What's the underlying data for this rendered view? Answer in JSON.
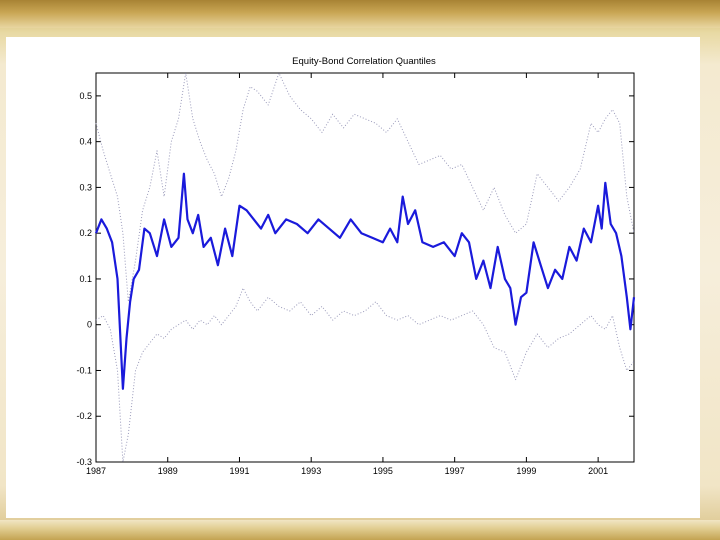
{
  "chart_data": {
    "type": "line",
    "title": "Equity-Bond Correlation Quantiles",
    "xlabel": "",
    "ylabel": "",
    "xlim": [
      1987.0,
      2002.0
    ],
    "ylim": [
      -0.3,
      0.55
    ],
    "xticks": [
      {
        "value": 1987,
        "label": "1987"
      },
      {
        "value": 1989,
        "label": "1989"
      },
      {
        "value": 1991,
        "label": "1991"
      },
      {
        "value": 1993,
        "label": "1993"
      },
      {
        "value": 1995,
        "label": "1995"
      },
      {
        "value": 1997,
        "label": "1997"
      },
      {
        "value": 1999,
        "label": "1999"
      },
      {
        "value": 2001,
        "label": "2001"
      }
    ],
    "yticks": [
      {
        "value": -0.3,
        "label": "-0.3"
      },
      {
        "value": -0.2,
        "label": "-0.2"
      },
      {
        "value": -0.1,
        "label": "-0.1"
      },
      {
        "value": 0,
        "label": "0"
      },
      {
        "value": 0.1,
        "label": "0.1"
      },
      {
        "value": 0.2,
        "label": "0.2"
      },
      {
        "value": 0.3,
        "label": "0.3"
      },
      {
        "value": 0.4,
        "label": "0.4"
      },
      {
        "value": 0.5,
        "label": "0.5"
      }
    ],
    "grid": false,
    "legend": false,
    "series": [
      {
        "color": "#1a1adb",
        "style": "solid",
        "x": [
          1987.0,
          1987.15,
          1987.3,
          1987.45,
          1987.6,
          1987.75,
          1987.85,
          1987.95,
          1988.05,
          1988.2,
          1988.35,
          1988.5,
          1988.7,
          1988.9,
          1989.1,
          1989.3,
          1989.45,
          1989.55,
          1989.7,
          1989.85,
          1990.0,
          1990.2,
          1990.4,
          1990.6,
          1990.8,
          1991.0,
          1991.2,
          1991.4,
          1991.6,
          1991.8,
          1992.0,
          1992.3,
          1992.6,
          1992.9,
          1993.2,
          1993.5,
          1993.8,
          1994.1,
          1994.4,
          1994.7,
          1995.0,
          1995.2,
          1995.4,
          1995.55,
          1995.7,
          1995.9,
          1996.1,
          1996.4,
          1996.7,
          1997.0,
          1997.2,
          1997.4,
          1997.6,
          1997.8,
          1998.0,
          1998.2,
          1998.4,
          1998.55,
          1998.7,
          1998.85,
          1999.0,
          1999.2,
          1999.4,
          1999.6,
          1999.8,
          2000.0,
          2000.2,
          2000.4,
          2000.6,
          2000.8,
          2001.0,
          2001.1,
          2001.2,
          2001.35,
          2001.5,
          2001.65,
          2001.8,
          2001.9,
          2002.0
        ],
        "y": [
          0.2,
          0.23,
          0.21,
          0.18,
          0.1,
          -0.14,
          -0.03,
          0.05,
          0.1,
          0.12,
          0.21,
          0.2,
          0.15,
          0.23,
          0.17,
          0.19,
          0.33,
          0.23,
          0.2,
          0.24,
          0.17,
          0.19,
          0.13,
          0.21,
          0.15,
          0.26,
          0.25,
          0.23,
          0.21,
          0.24,
          0.2,
          0.23,
          0.22,
          0.2,
          0.23,
          0.21,
          0.19,
          0.23,
          0.2,
          0.19,
          0.18,
          0.21,
          0.18,
          0.28,
          0.22,
          0.25,
          0.18,
          0.17,
          0.18,
          0.15,
          0.2,
          0.18,
          0.1,
          0.14,
          0.08,
          0.17,
          0.1,
          0.08,
          0.0,
          0.06,
          0.07,
          0.18,
          0.13,
          0.08,
          0.12,
          0.1,
          0.17,
          0.14,
          0.21,
          0.18,
          0.26,
          0.21,
          0.31,
          0.22,
          0.2,
          0.15,
          0.06,
          -0.01,
          0.06
        ]
      },
      {
        "color": "#9a9aba",
        "style": "dotted",
        "x": [
          1987.0,
          1987.2,
          1987.4,
          1987.6,
          1987.75,
          1987.9,
          1988.1,
          1988.3,
          1988.5,
          1988.7,
          1988.9,
          1989.1,
          1989.3,
          1989.5,
          1989.7,
          1989.9,
          1990.1,
          1990.3,
          1990.5,
          1990.7,
          1990.9,
          1991.1,
          1991.3,
          1991.5,
          1991.8,
          1992.1,
          1992.4,
          1992.7,
          1993.0,
          1993.3,
          1993.6,
          1993.9,
          1994.2,
          1994.5,
          1994.8,
          1995.1,
          1995.4,
          1995.7,
          1996.0,
          1996.3,
          1996.6,
          1996.9,
          1997.2,
          1997.5,
          1997.8,
          1998.1,
          1998.4,
          1998.7,
          1999.0,
          1999.3,
          1999.6,
          1999.9,
          2000.2,
          2000.5,
          2000.8,
          2001.0,
          2001.2,
          2001.4,
          2001.6,
          2001.8,
          2002.0
        ],
        "y": [
          0.44,
          0.38,
          0.33,
          0.28,
          0.2,
          0.05,
          0.14,
          0.25,
          0.3,
          0.38,
          0.28,
          0.4,
          0.45,
          0.55,
          0.45,
          0.4,
          0.36,
          0.33,
          0.28,
          0.32,
          0.38,
          0.47,
          0.52,
          0.51,
          0.48,
          0.55,
          0.5,
          0.47,
          0.45,
          0.42,
          0.46,
          0.43,
          0.46,
          0.45,
          0.44,
          0.42,
          0.45,
          0.4,
          0.35,
          0.36,
          0.37,
          0.34,
          0.35,
          0.3,
          0.25,
          0.3,
          0.24,
          0.2,
          0.22,
          0.33,
          0.3,
          0.27,
          0.3,
          0.34,
          0.44,
          0.42,
          0.45,
          0.47,
          0.44,
          0.28,
          0.2
        ]
      },
      {
        "color": "#9a9aba",
        "style": "dotted",
        "x": [
          1987.0,
          1987.2,
          1987.4,
          1987.6,
          1987.75,
          1987.9,
          1988.1,
          1988.3,
          1988.5,
          1988.7,
          1988.9,
          1989.1,
          1989.3,
          1989.5,
          1989.7,
          1989.9,
          1990.1,
          1990.3,
          1990.5,
          1990.7,
          1990.9,
          1991.1,
          1991.3,
          1991.5,
          1991.8,
          1992.1,
          1992.4,
          1992.7,
          1993.0,
          1993.3,
          1993.6,
          1993.9,
          1994.2,
          1994.5,
          1994.8,
          1995.1,
          1995.4,
          1995.7,
          1996.0,
          1996.3,
          1996.6,
          1996.9,
          1997.2,
          1997.5,
          1997.8,
          1998.1,
          1998.4,
          1998.7,
          1999.0,
          1999.3,
          1999.6,
          1999.9,
          2000.2,
          2000.5,
          2000.8,
          2001.0,
          2001.2,
          2001.4,
          2001.6,
          2001.8,
          2002.0
        ],
        "y": [
          0.01,
          0.02,
          -0.01,
          -0.1,
          -0.3,
          -0.24,
          -0.1,
          -0.06,
          -0.04,
          -0.02,
          -0.03,
          -0.01,
          0.0,
          0.01,
          -0.01,
          0.01,
          0.0,
          0.02,
          0.0,
          0.02,
          0.04,
          0.08,
          0.05,
          0.03,
          0.06,
          0.04,
          0.03,
          0.05,
          0.02,
          0.04,
          0.01,
          0.03,
          0.02,
          0.03,
          0.05,
          0.02,
          0.01,
          0.02,
          0.0,
          0.01,
          0.02,
          0.01,
          0.02,
          0.03,
          0.0,
          -0.05,
          -0.06,
          -0.12,
          -0.06,
          -0.02,
          -0.05,
          -0.03,
          -0.02,
          0.0,
          0.02,
          0.0,
          -0.01,
          0.02,
          -0.05,
          -0.1,
          -0.08
        ]
      }
    ]
  }
}
